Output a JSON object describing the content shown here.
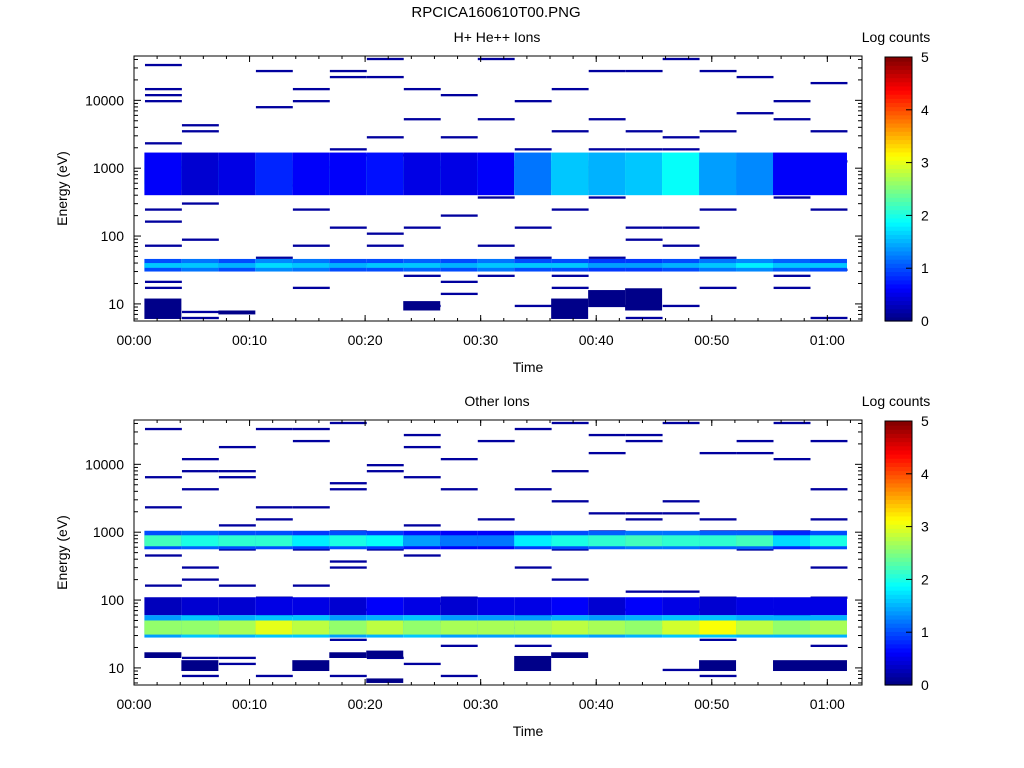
{
  "page_title": "RPCICA160610T00.PNG",
  "colormap": [
    "#00007f",
    "#0000ff",
    "#007fff",
    "#00ffff",
    "#7fff7f",
    "#ffff00",
    "#ff7f00",
    "#ff0000",
    "#7f0000"
  ],
  "chart_data": [
    {
      "type": "heatmap",
      "title": "H+ He++ Ions",
      "xlabel": "Time",
      "ylabel": "Energy (eV)",
      "colorbar_label": "Log counts",
      "colorbar_range": [
        0,
        5
      ],
      "colorbar_ticks": [
        "0",
        "1",
        "2",
        "3",
        "4",
        "5"
      ],
      "x_ticks": [
        "00:00",
        "00:10",
        "00:20",
        "00:30",
        "00:40",
        "00:50",
        "01:00"
      ],
      "y_ticks": [
        "10",
        "100",
        "1000",
        "10000"
      ],
      "y_scale": "log",
      "ylim": [
        5.6,
        45000
      ],
      "xlim_minutes": [
        0,
        63
      ],
      "bins_minutes": [
        2.5,
        5.7,
        8.9,
        12.1,
        15.3,
        18.5,
        21.7,
        24.9,
        28.1,
        31.3,
        34.5,
        37.7,
        40.9,
        44.1,
        47.3,
        50.5,
        53.7,
        56.9,
        60.1
      ],
      "bands": [
        {
          "emin": 580,
          "emax": 1000,
          "levels": [
            2.8,
            2.6,
            2.4,
            3.2,
            2.6,
            2.8,
            3.0,
            2.6,
            2.6,
            2.4,
            2.5,
            2.6,
            2.9,
            2.8,
            3.3,
            3.0,
            2.6,
            2.5,
            2.7
          ]
        },
        {
          "emin": 480,
          "emax": 1300,
          "levels": [
            1.9,
            1.8,
            1.7,
            2.0,
            1.8,
            1.9,
            2.0,
            1.8,
            1.7,
            1.6,
            1.8,
            1.9,
            2.1,
            2.1,
            2.2,
            2.0,
            1.9,
            1.8,
            1.9
          ]
        },
        {
          "emin": 400,
          "emax": 1700,
          "levels": [
            0.6,
            0.4,
            0.5,
            0.8,
            0.6,
            0.6,
            0.7,
            0.5,
            0.5,
            0.6,
            1.2,
            1.6,
            1.5,
            1.6,
            1.9,
            1.4,
            1.3,
            0.6,
            0.6
          ]
        },
        {
          "emin": 30,
          "emax": 46,
          "levels": [
            1.0,
            1.2,
            1.0,
            1.3,
            1.2,
            1.0,
            1.0,
            1.1,
            1.0,
            1.2,
            1.0,
            1.0,
            0.9,
            0.9,
            1.0,
            1.2,
            1.3,
            1.1,
            1.0
          ]
        },
        {
          "emin": 34,
          "emax": 40,
          "levels": [
            1.6,
            1.6,
            1.5,
            1.7,
            1.6,
            1.5,
            1.6,
            1.6,
            1.5,
            1.6,
            1.6,
            1.6,
            1.4,
            1.4,
            1.5,
            1.6,
            1.8,
            1.6,
            1.6
          ]
        }
      ],
      "specks": [
        [
          0,
          9
        ],
        [
          0,
          6
        ],
        [
          0,
          4
        ],
        [
          0,
          3
        ],
        [
          1,
          6
        ],
        [
          1,
          3
        ],
        [
          3,
          8
        ],
        [
          3,
          5
        ],
        [
          4,
          7
        ],
        [
          4,
          2
        ],
        [
          5,
          9
        ],
        [
          5,
          6
        ],
        [
          6,
          8
        ],
        [
          6,
          4
        ],
        [
          7,
          7
        ],
        [
          7,
          5
        ],
        [
          8,
          9
        ],
        [
          8,
          3
        ],
        [
          9,
          8
        ],
        [
          9,
          6
        ],
        [
          10,
          7
        ],
        [
          10,
          5
        ],
        [
          11,
          9
        ],
        [
          11,
          4
        ],
        [
          12,
          8
        ],
        [
          12,
          6
        ],
        [
          13,
          7
        ],
        [
          13,
          3
        ],
        [
          14,
          9
        ],
        [
          14,
          5
        ],
        [
          15,
          8
        ],
        [
          15,
          6
        ],
        [
          16,
          7
        ],
        [
          16,
          4
        ],
        [
          17,
          9
        ],
        [
          17,
          5
        ],
        [
          18,
          8
        ],
        [
          18,
          6
        ]
      ],
      "low_blocks": [
        [
          0,
          6,
          12
        ],
        [
          2,
          7,
          8
        ],
        [
          7,
          8,
          11
        ],
        [
          11,
          6,
          12
        ],
        [
          12,
          9,
          16
        ],
        [
          13,
          8,
          17
        ]
      ]
    },
    {
      "type": "heatmap",
      "title": "Other Ions",
      "xlabel": "Time",
      "ylabel": "Energy (eV)",
      "colorbar_label": "Log counts",
      "colorbar_range": [
        0,
        5
      ],
      "colorbar_ticks": [
        "0",
        "1",
        "2",
        "3",
        "4",
        "5"
      ],
      "x_ticks": [
        "00:00",
        "00:10",
        "00:20",
        "00:30",
        "00:40",
        "00:50",
        "01:00"
      ],
      "y_ticks": [
        "10",
        "100",
        "1000",
        "10000"
      ],
      "y_scale": "log",
      "ylim": [
        5.6,
        45000
      ],
      "xlim_minutes": [
        0,
        63
      ],
      "bins_minutes": [
        2.5,
        5.7,
        8.9,
        12.1,
        15.3,
        18.5,
        21.7,
        24.9,
        28.1,
        31.3,
        34.5,
        37.7,
        40.9,
        44.1,
        47.3,
        50.5,
        53.7,
        56.9,
        60.1
      ],
      "bands": [
        {
          "emin": 560,
          "emax": 1050,
          "levels": [
            1.0,
            1.1,
            1.0,
            1.0,
            0.9,
            1.0,
            0.9,
            0.7,
            0.6,
            0.6,
            0.9,
            1.0,
            1.1,
            1.2,
            1.2,
            1.1,
            1.1,
            0.8,
            1.0
          ]
        },
        {
          "emin": 620,
          "emax": 900,
          "levels": [
            2.2,
            2.0,
            2.1,
            2.1,
            1.8,
            2.0,
            1.9,
            1.4,
            1.2,
            1.2,
            1.8,
            2.0,
            2.1,
            2.2,
            2.1,
            2.1,
            2.2,
            1.7,
            2.0
          ]
        },
        {
          "emin": 28,
          "emax": 60,
          "levels": [
            1.4,
            1.6,
            1.5,
            1.6,
            1.6,
            1.4,
            1.5,
            1.6,
            1.4,
            1.4,
            1.4,
            1.5,
            1.4,
            1.5,
            1.6,
            1.6,
            1.5,
            1.5,
            1.5
          ]
        },
        {
          "emin": 31,
          "emax": 50,
          "levels": [
            2.6,
            2.6,
            2.7,
            3.0,
            2.8,
            2.6,
            2.8,
            2.6,
            2.7,
            2.7,
            2.7,
            2.8,
            2.7,
            2.6,
            2.9,
            3.1,
            2.8,
            2.6,
            2.7
          ]
        },
        {
          "emin": 60,
          "emax": 110,
          "levels": [
            0.3,
            0.4,
            0.4,
            0.5,
            0.5,
            0.4,
            0.6,
            0.5,
            0.4,
            0.5,
            0.5,
            0.6,
            0.4,
            0.6,
            0.5,
            0.4,
            0.5,
            0.5,
            0.5
          ]
        }
      ],
      "specks": [
        [
          0,
          4
        ],
        [
          0,
          2
        ],
        [
          1,
          7
        ],
        [
          1,
          3
        ],
        [
          1,
          1
        ],
        [
          2,
          5
        ],
        [
          2,
          3
        ],
        [
          2,
          2
        ],
        [
          3,
          6
        ],
        [
          3,
          2
        ],
        [
          4,
          8
        ],
        [
          4,
          3
        ],
        [
          5,
          7
        ],
        [
          5,
          4
        ],
        [
          5,
          2
        ],
        [
          6,
          6
        ],
        [
          6,
          3
        ],
        [
          7,
          9
        ],
        [
          7,
          4
        ],
        [
          7,
          2
        ],
        [
          8,
          5
        ],
        [
          8,
          3
        ],
        [
          9,
          2
        ],
        [
          10,
          6
        ],
        [
          10,
          4
        ],
        [
          11,
          7
        ],
        [
          11,
          5
        ],
        [
          12,
          8
        ],
        [
          12,
          4
        ],
        [
          13,
          6
        ],
        [
          13,
          3
        ],
        [
          14,
          9
        ],
        [
          14,
          5
        ],
        [
          15,
          7
        ],
        [
          15,
          2
        ],
        [
          16,
          8
        ],
        [
          16,
          4
        ],
        [
          17,
          6
        ],
        [
          17,
          3
        ],
        [
          18,
          5
        ],
        [
          18,
          3
        ]
      ],
      "low_blocks": [
        [
          0,
          14,
          17
        ],
        [
          1,
          9,
          13
        ],
        [
          4,
          9,
          13
        ],
        [
          5,
          14,
          17
        ],
        [
          6,
          6,
          7
        ],
        [
          6,
          14,
          18
        ],
        [
          10,
          9,
          15
        ],
        [
          11,
          14,
          17
        ],
        [
          15,
          9,
          13
        ],
        [
          17,
          9,
          13
        ],
        [
          18,
          9,
          13
        ]
      ]
    }
  ]
}
